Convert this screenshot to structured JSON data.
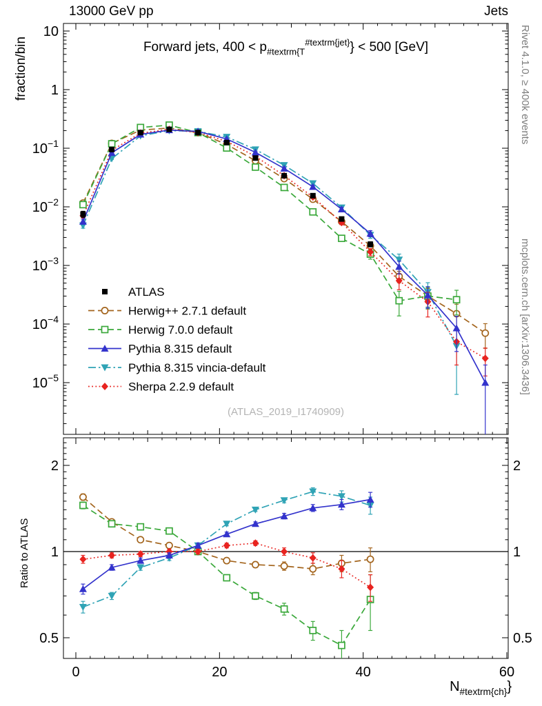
{
  "header": {
    "left": "13000 GeV pp",
    "right": "Jets"
  },
  "title_parts": {
    "pre": "Forward jets, 400 < p",
    "sub": "#textrm{T",
    "sup": "#textrm{jet}",
    "post": "} < 500 [GeV]"
  },
  "xlabel_parts": {
    "pre": "N",
    "sub": "#textrm{ch}",
    "post": "}"
  },
  "labels": {
    "y_main": "fraction/bin",
    "y_ratio": "Ratio to ATLAS",
    "side_top": "Rivet 4.1.0, ≥ 400k events",
    "side_bottom": "mcplots.cern.ch [arXiv:1306.3436]",
    "watermark": "(ATLAS_2019_I1740909)"
  },
  "chart_data": {
    "type": "line",
    "title": "Forward jets, 400 < p_{#textrm{T}}^{#textrm{jet}} < 500 [GeV]",
    "xlabel": "N_{#textrm{ch}}",
    "ylabel_main": "fraction/bin",
    "ylabel_ratio": "Ratio to ATLAS",
    "x": [
      1,
      5,
      9,
      13,
      17,
      21,
      25,
      29,
      33,
      37,
      41,
      45,
      49,
      53,
      57
    ],
    "xlim": [
      -1.75,
      60.25
    ],
    "main_ylim": [
      1.3e-06,
      13.5
    ],
    "ratio_ylim": [
      0.423,
      2.5
    ],
    "ratio_ref": 1,
    "legend_position": "middle-left",
    "grid": false,
    "xticks": [
      {
        "v": 0,
        "t": "0"
      },
      {
        "v": 20,
        "t": "20"
      },
      {
        "v": 40,
        "t": "40"
      },
      {
        "v": 60,
        "t": "60"
      }
    ],
    "yticks_main": [
      {
        "v": 10,
        "t": "10"
      },
      {
        "v": 1,
        "t": "1"
      },
      {
        "v": 0.1,
        "t": "10",
        "e": "−1"
      },
      {
        "v": 0.01,
        "t": "10",
        "e": "−2"
      },
      {
        "v": 0.001,
        "t": "10",
        "e": "−3"
      },
      {
        "v": 0.0001,
        "t": "10",
        "e": "−4"
      },
      {
        "v": 1e-05,
        "t": "10",
        "e": "−5"
      }
    ],
    "yticks_ratio": [
      {
        "v": 0.5,
        "t": "0.5"
      },
      {
        "v": 1,
        "t": "1"
      },
      {
        "v": 2,
        "t": "2"
      }
    ],
    "series": [
      {
        "name": "ATLAS",
        "color": "#000000",
        "marker": "square",
        "line": "none",
        "y": [
          0.0075,
          0.095,
          0.185,
          0.21,
          0.185,
          0.125,
          0.068,
          0.034,
          0.0155,
          0.0062,
          0.0023
        ],
        "yerr": [
          0.12,
          0.03,
          0.02,
          0.02,
          0.02,
          0.02,
          0.03,
          0.04,
          0.05,
          0.07,
          0.1
        ],
        "ratio": null,
        "ratio_err": null
      },
      {
        "name": "Herwig++ 2.7.1 default",
        "color": "#a3641c",
        "marker": "circle-open",
        "line": "dashed",
        "y": [
          0.0116,
          0.121,
          0.204,
          0.221,
          0.185,
          0.116,
          0.0612,
          0.0303,
          0.0135,
          0.0056,
          0.00216,
          0.00065,
          0.0003,
          0.00015,
          7e-05
        ],
        "yerr": [
          0.1,
          0.03,
          0.02,
          0.02,
          0.02,
          0.02,
          0.03,
          0.04,
          0.06,
          0.09,
          0.13,
          0.22,
          0.35,
          0.45,
          0.45
        ],
        "ratio": [
          1.55,
          1.27,
          1.1,
          1.05,
          1.0,
          0.93,
          0.9,
          0.89,
          0.87,
          0.91,
          0.94
        ],
        "ratio_err": [
          0.04,
          0.02,
          0.02,
          0.02,
          0.02,
          0.02,
          0.02,
          0.03,
          0.04,
          0.06,
          0.09
        ]
      },
      {
        "name": "Herwig 7.0.0 default",
        "color": "#3aa83a",
        "marker": "square-open",
        "line": "dashed",
        "y": [
          0.0109,
          0.119,
          0.226,
          0.248,
          0.185,
          0.101,
          0.0476,
          0.0214,
          0.0082,
          0.0029,
          0.00156,
          0.00025,
          0.0003,
          0.00026
        ],
        "yerr": [
          0.1,
          0.03,
          0.02,
          0.02,
          0.02,
          0.02,
          0.03,
          0.05,
          0.07,
          0.1,
          0.18,
          0.45,
          0.4,
          0.45
        ],
        "ratio": [
          1.45,
          1.25,
          1.22,
          1.18,
          1.0,
          0.81,
          0.7,
          0.63,
          0.53,
          0.47,
          0.68
        ],
        "ratio_err": [
          0.04,
          0.02,
          0.02,
          0.02,
          0.02,
          0.02,
          0.02,
          0.03,
          0.04,
          0.06,
          0.15
        ]
      },
      {
        "name": "Pythia 8.315 default",
        "color": "#3333cc",
        "marker": "triangle-up",
        "line": "solid",
        "y": [
          0.0056,
          0.0836,
          0.172,
          0.204,
          0.194,
          0.144,
          0.085,
          0.0452,
          0.022,
          0.0091,
          0.0035,
          0.00095,
          0.00031,
          8.5e-05,
          1e-05
        ],
        "yerr": [
          0.1,
          0.03,
          0.02,
          0.02,
          0.02,
          0.02,
          0.03,
          0.04,
          0.05,
          0.08,
          0.12,
          0.25,
          0.4,
          0.6,
          1.0
        ],
        "ratio": [
          0.74,
          0.88,
          0.93,
          0.97,
          1.05,
          1.15,
          1.25,
          1.33,
          1.42,
          1.46,
          1.52
        ],
        "ratio_err": [
          0.03,
          0.02,
          0.02,
          0.02,
          0.02,
          0.02,
          0.02,
          0.03,
          0.04,
          0.06,
          0.09
        ]
      },
      {
        "name": "Pythia 8.315 vincia-default",
        "color": "#2fa3b5",
        "marker": "triangle-down",
        "line": "dashdot",
        "y": [
          0.0048,
          0.0665,
          0.163,
          0.1995,
          0.194,
          0.156,
          0.0952,
          0.0514,
          0.0251,
          0.0097,
          0.0033,
          0.00125,
          0.00035,
          4.2e-05
        ],
        "yerr": [
          0.1,
          0.03,
          0.02,
          0.02,
          0.02,
          0.02,
          0.03,
          0.04,
          0.05,
          0.08,
          0.12,
          0.25,
          0.45,
          0.85
        ],
        "ratio": [
          0.64,
          0.7,
          0.88,
          0.95,
          1.05,
          1.25,
          1.4,
          1.51,
          1.62,
          1.56,
          1.45
        ],
        "ratio_err": [
          0.03,
          0.02,
          0.02,
          0.02,
          0.02,
          0.02,
          0.02,
          0.03,
          0.05,
          0.07,
          0.1
        ]
      },
      {
        "name": "Sherpa 2.2.9 default",
        "color": "#e8231f",
        "marker": "diamond",
        "line": "dotted",
        "y": [
          0.00705,
          0.0922,
          0.181,
          0.21,
          0.185,
          0.131,
          0.0728,
          0.034,
          0.0147,
          0.0054,
          0.0017,
          0.00055,
          0.00024,
          5e-05,
          2.6e-05
        ],
        "yerr": [
          0.08,
          0.03,
          0.02,
          0.02,
          0.02,
          0.02,
          0.03,
          0.04,
          0.05,
          0.08,
          0.14,
          0.3,
          0.45,
          0.6,
          0.5
        ],
        "ratio": [
          0.94,
          0.97,
          0.98,
          1.0,
          1.0,
          1.05,
          1.07,
          1.0,
          0.95,
          0.87,
          0.75
        ],
        "ratio_err": [
          0.03,
          0.02,
          0.02,
          0.02,
          0.02,
          0.02,
          0.02,
          0.03,
          0.04,
          0.06,
          0.08
        ]
      }
    ]
  }
}
